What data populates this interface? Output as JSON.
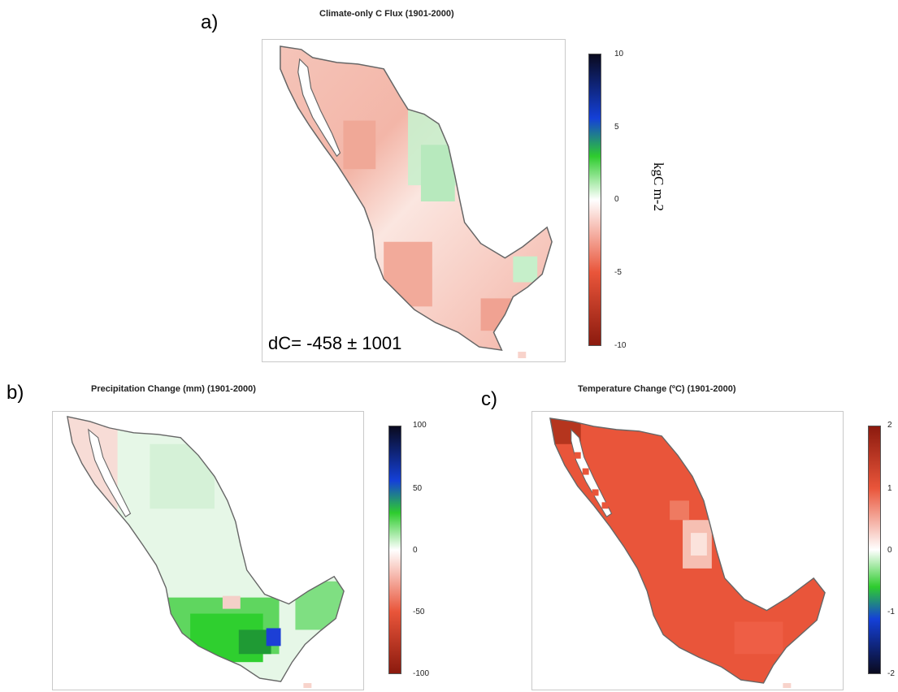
{
  "panels": [
    {
      "letter": "a)",
      "title": "Climate-only C Flux (1901-2000)",
      "colorbar_ticks": [
        "10",
        "5",
        "0",
        "-5",
        "-10"
      ],
      "unit": "kgC m-2",
      "annotation": "dC= -458 ± 1001",
      "colors": {
        "low": "#8b1a0e",
        "mid_low": "#e9553a",
        "mid": "#ffffff",
        "mid_high": "#2ecc2e",
        "high_a": "#1440d8",
        "high": "#0a0a1e"
      }
    },
    {
      "letter": "b)",
      "title": "Precipitation Change (mm) (1901-2000)",
      "colorbar_ticks": [
        "100",
        "50",
        "0",
        "-50",
        "-100"
      ],
      "colors": {
        "low": "#8b1a0e",
        "mid_low": "#e9553a",
        "mid": "#ffffff",
        "mid_high": "#2ecc2e",
        "high_a": "#1440d8",
        "high": "#0a0a1e"
      }
    },
    {
      "letter": "c)",
      "title": "Temperature Change (ºC) (1901-2000)",
      "colorbar_ticks": [
        "2",
        "1",
        "0",
        "-1",
        "-2"
      ],
      "colors": {
        "low": "#0a0a1e",
        "mid_low": "#1440d8",
        "mid_green": "#2ecc2e",
        "mid": "#ffffff",
        "mid_high": "#e9553a",
        "high": "#8b1a0e"
      }
    }
  ]
}
